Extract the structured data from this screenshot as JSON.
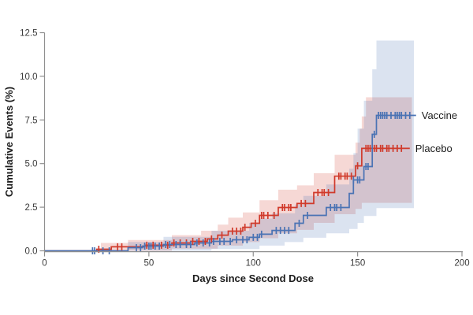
{
  "chart_data": {
    "type": "line",
    "subtype": "kaplan-meier-cumulative-incidence",
    "title": "",
    "xlabel": "Days since Second Dose",
    "ylabel": "Cumulative Events (%)",
    "xlim": [
      0,
      200
    ],
    "ylim": [
      0,
      12.5
    ],
    "x_ticks": [
      {
        "v": 0,
        "label": "0"
      },
      {
        "v": 50,
        "label": "50"
      },
      {
        "v": 100,
        "label": "100"
      },
      {
        "v": 150,
        "label": "150"
      },
      {
        "v": 200,
        "label": "200"
      }
    ],
    "y_ticks": [
      {
        "v": 0,
        "label": "0.0"
      },
      {
        "v": 2.5,
        "label": "2.5"
      },
      {
        "v": 5,
        "label": "5.0"
      },
      {
        "v": 7.5,
        "label": "7.5"
      },
      {
        "v": 10,
        "label": "10.0"
      },
      {
        "v": 12.5,
        "label": "12.5"
      }
    ],
    "grid": false,
    "legend_position": "right-of-curve-ends",
    "axis_color": "#8f8f8f",
    "series": [
      {
        "name": "Placebo",
        "color": "#d03a2b",
        "band_fill": "rgba(208,58,43,0.20)",
        "end_day": 175,
        "band_end_day": 176,
        "steps": [
          [
            25,
            0.09
          ],
          [
            32,
            0.23
          ],
          [
            48,
            0.32
          ],
          [
            61,
            0.45
          ],
          [
            70,
            0.54
          ],
          [
            78,
            0.68
          ],
          [
            83,
            0.9
          ],
          [
            88,
            1.13
          ],
          [
            95,
            1.35
          ],
          [
            99,
            1.58
          ],
          [
            103,
            2.03
          ],
          [
            112,
            2.48
          ],
          [
            121,
            2.71
          ],
          [
            129,
            3.34
          ],
          [
            139,
            4.28
          ],
          [
            149,
            4.87
          ],
          [
            152,
            5.87
          ]
        ],
        "ci_upper": [
          [
            27,
            0.45
          ],
          [
            40,
            0.62
          ],
          [
            61,
            0.9
          ],
          [
            75,
            1.15
          ],
          [
            83,
            1.5
          ],
          [
            88,
            1.9
          ],
          [
            95,
            2.2
          ],
          [
            103,
            2.9
          ],
          [
            112,
            3.5
          ],
          [
            121,
            3.75
          ],
          [
            129,
            4.45
          ],
          [
            139,
            5.5
          ],
          [
            149,
            6.2
          ],
          [
            151,
            7.0
          ],
          [
            152,
            7.7
          ],
          [
            154,
            8.8
          ]
        ],
        "ci_lower": [
          [
            27,
            0
          ],
          [
            61,
            0.12
          ],
          [
            83,
            0.3
          ],
          [
            95,
            0.5
          ],
          [
            103,
            0.72
          ],
          [
            112,
            1.0
          ],
          [
            121,
            1.2
          ],
          [
            129,
            1.6
          ],
          [
            139,
            2.1
          ],
          [
            149,
            2.4
          ],
          [
            152,
            2.75
          ]
        ],
        "censor_days": [
          26,
          35,
          37,
          49,
          52,
          56,
          59,
          62,
          65,
          68,
          71,
          74,
          77,
          80,
          85,
          90,
          92,
          94,
          96,
          101,
          104,
          105,
          107,
          110,
          114,
          115,
          117,
          118,
          123,
          125,
          131,
          133,
          134,
          136,
          141,
          142,
          144,
          145,
          147,
          150,
          154,
          155,
          156,
          158,
          159,
          161,
          162,
          164,
          165,
          167,
          169,
          171
        ]
      },
      {
        "name": "Vaccine",
        "color": "#4a73b4",
        "band_fill": "rgba(74,115,180,0.20)",
        "end_day": 178,
        "band_end_day": 177,
        "steps": [
          [
            40,
            0.18
          ],
          [
            47,
            0.27
          ],
          [
            57,
            0.36
          ],
          [
            72,
            0.45
          ],
          [
            80,
            0.54
          ],
          [
            90,
            0.63
          ],
          [
            98,
            0.77
          ],
          [
            103,
            0.95
          ],
          [
            109,
            1.17
          ],
          [
            120,
            1.58
          ],
          [
            124,
            2.03
          ],
          [
            135,
            2.48
          ],
          [
            146,
            3.29
          ],
          [
            148,
            4.06
          ],
          [
            153,
            4.83
          ],
          [
            157,
            6.68
          ],
          [
            159,
            7.76
          ]
        ],
        "ci_upper": [
          [
            40,
            0.5
          ],
          [
            57,
            0.8
          ],
          [
            80,
            1.15
          ],
          [
            98,
            1.6
          ],
          [
            103,
            1.85
          ],
          [
            109,
            2.15
          ],
          [
            120,
            2.65
          ],
          [
            124,
            3.15
          ],
          [
            135,
            3.8
          ],
          [
            146,
            4.7
          ],
          [
            148,
            5.6
          ],
          [
            150,
            7.0
          ],
          [
            153,
            8.6
          ],
          [
            157,
            10.4
          ],
          [
            159,
            12.05
          ]
        ],
        "ci_lower": [
          [
            40,
            0
          ],
          [
            80,
            0.1
          ],
          [
            103,
            0.3
          ],
          [
            115,
            0.5
          ],
          [
            124,
            0.75
          ],
          [
            135,
            1.0
          ],
          [
            146,
            1.25
          ],
          [
            150,
            1.6
          ],
          [
            153,
            2.0
          ],
          [
            159,
            2.45
          ]
        ],
        "censor_days": [
          23,
          24,
          28,
          31,
          44,
          46,
          48,
          50,
          51,
          53,
          55,
          58,
          60,
          63,
          65,
          68,
          70,
          73,
          76,
          79,
          81,
          84,
          86,
          89,
          92,
          95,
          97,
          100,
          102,
          104,
          111,
          113,
          115,
          117,
          122,
          126,
          137,
          139,
          140,
          142,
          148,
          150,
          151,
          154,
          155,
          158,
          160,
          161,
          162,
          163,
          164,
          166,
          168,
          169,
          170,
          171,
          173,
          175
        ]
      }
    ]
  }
}
